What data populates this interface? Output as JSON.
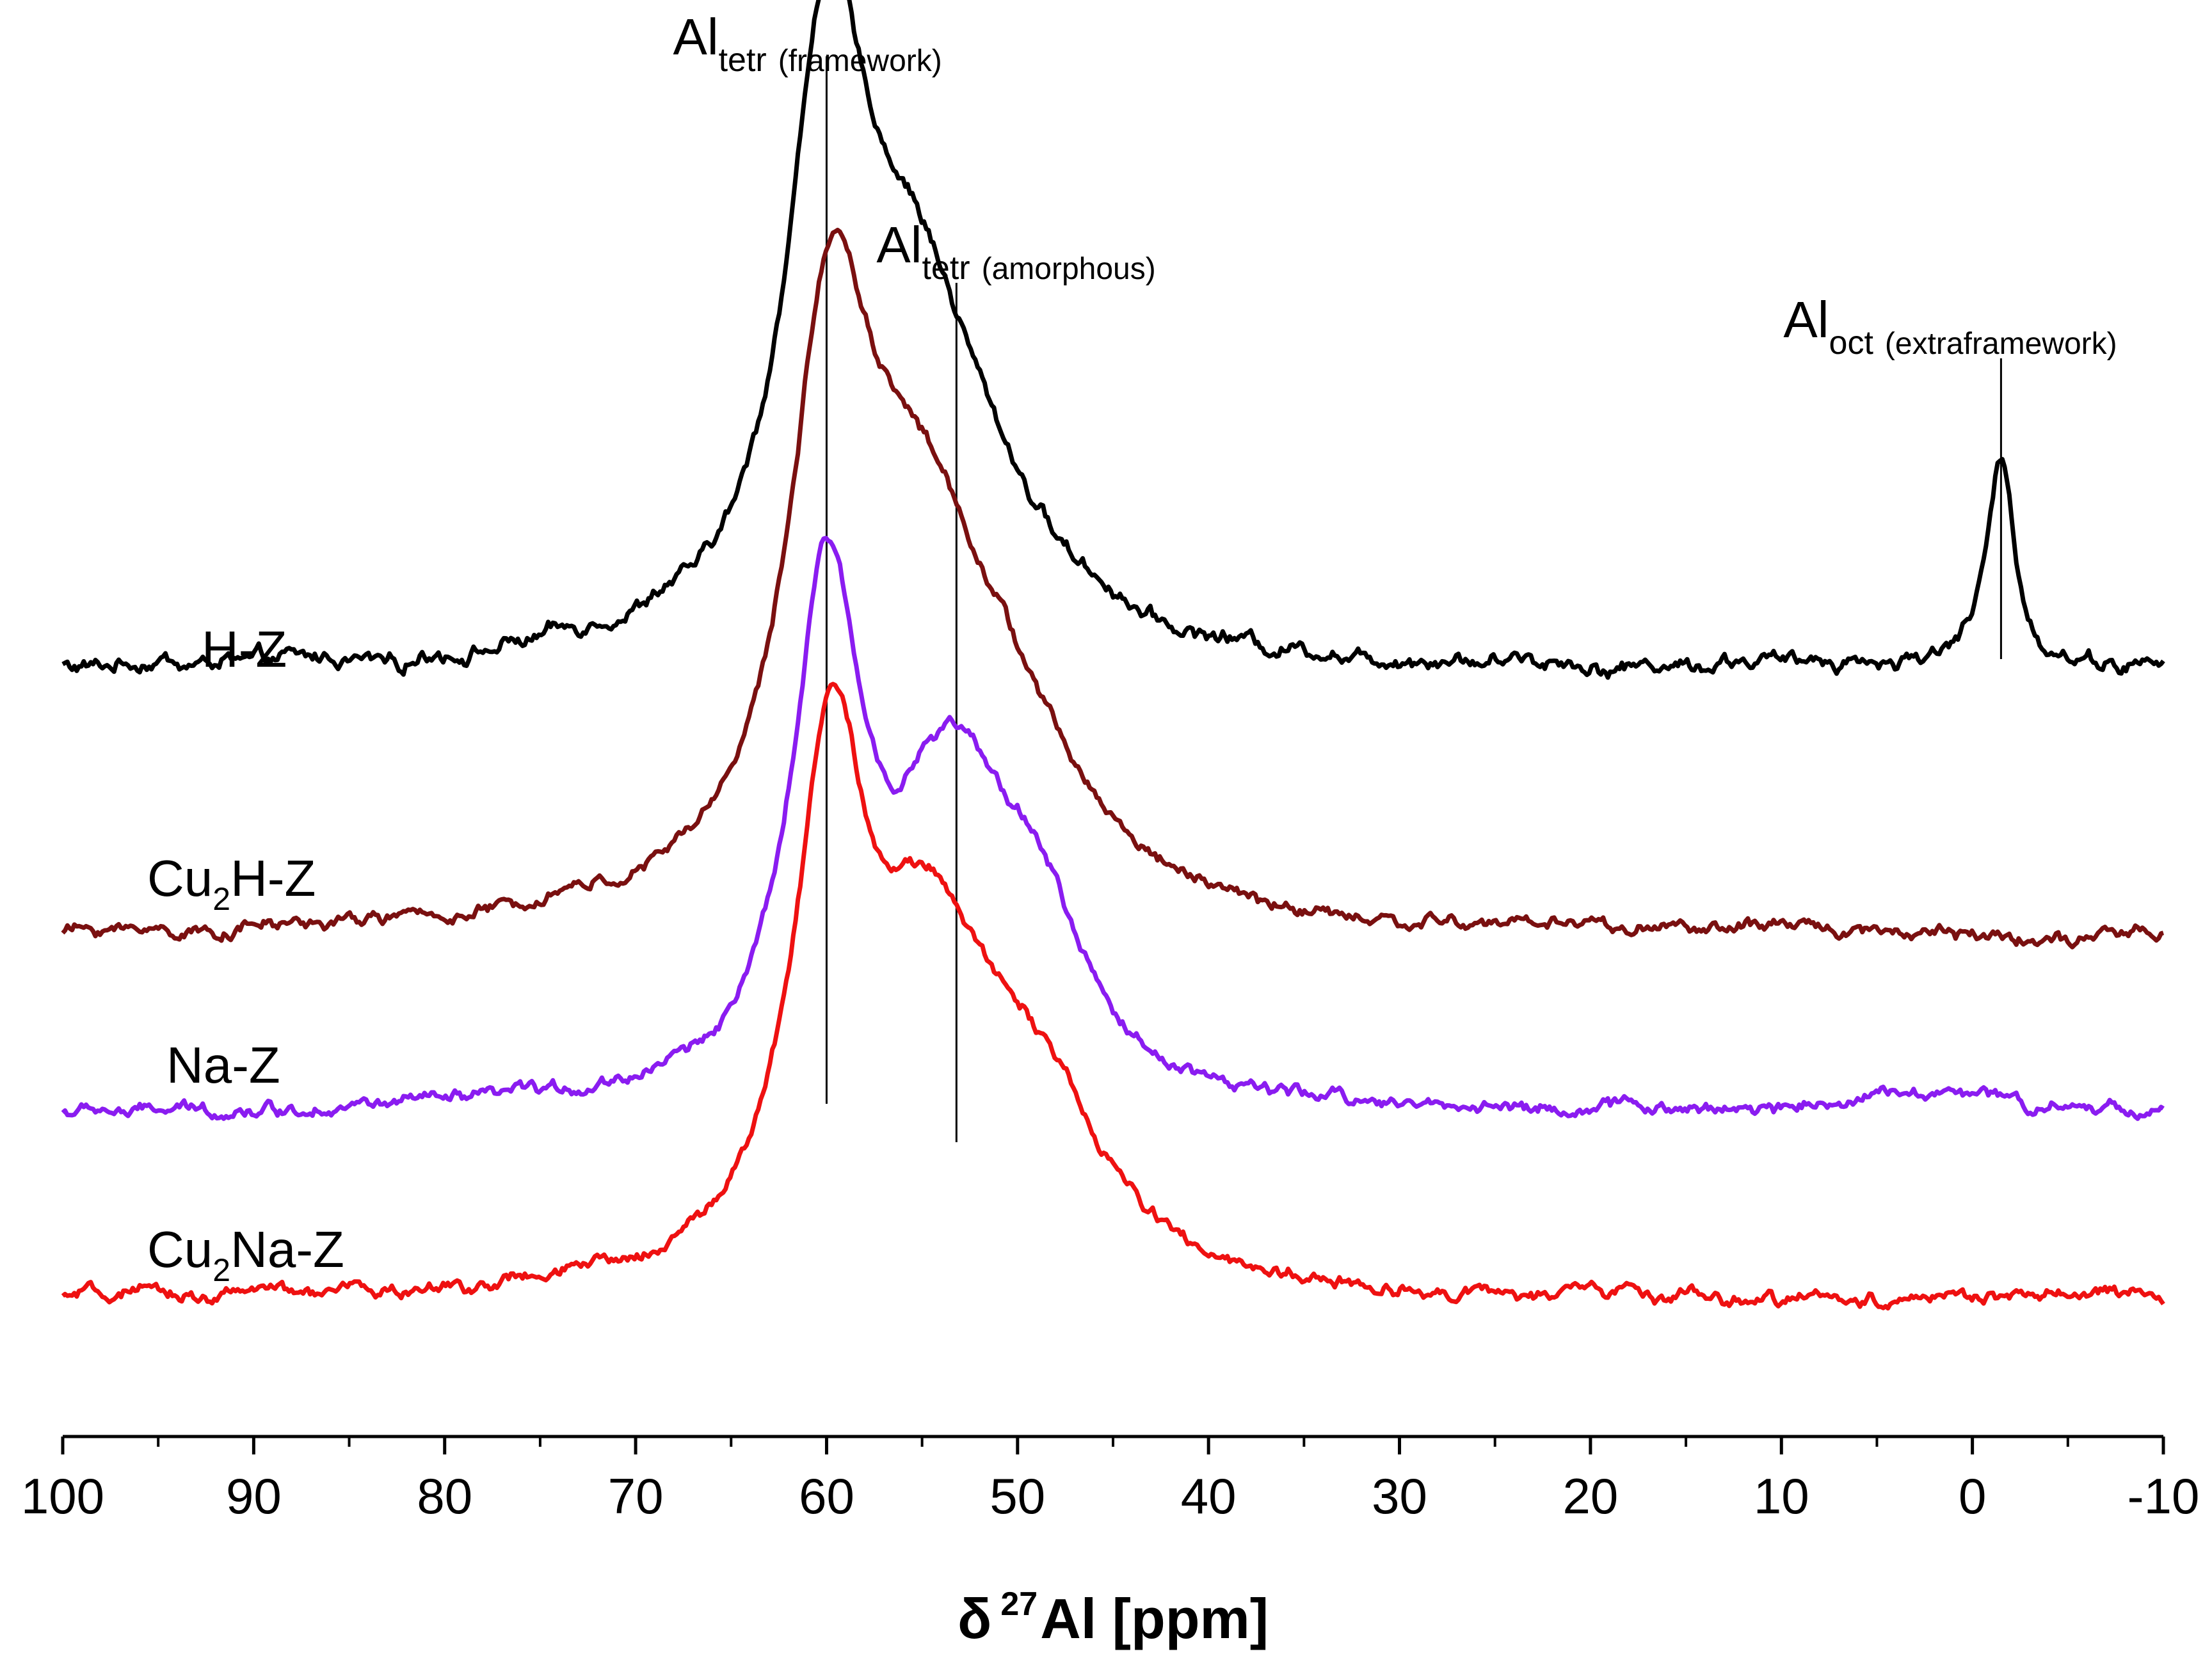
{
  "chart_data": {
    "type": "line",
    "title": "",
    "xlabel": "δ 27Al [ppm]",
    "xlabel_parts": {
      "symbol": "δ",
      "isotope": "27",
      "rest": "Al [ppm]"
    },
    "ylabel": "",
    "xlim": [
      100,
      -10
    ],
    "x_reversed": true,
    "x_ticks": [
      100,
      90,
      80,
      70,
      60,
      50,
      40,
      30,
      20,
      10,
      0,
      -10
    ],
    "x_tick_labels": [
      "100",
      "90",
      "80",
      "70",
      "60",
      "50",
      "40",
      "30",
      "20",
      "10",
      "0",
      "-10"
    ],
    "y_axis_visible": false,
    "grid": false,
    "series": [
      {
        "name": "H-Z",
        "label_parts": [
          "H-Z"
        ],
        "color": "#000000",
        "offset": 3,
        "baseline": 0.05,
        "noise": 0.03,
        "peaks": [
          {
            "center": 60.0,
            "height": 1.0,
            "width": 2.4
          },
          {
            "center": 56.0,
            "height": 0.45,
            "width": 4.0
          },
          {
            "center": 53.0,
            "height": 0.25,
            "width": 5.0
          },
          {
            "center": -1.5,
            "height": 0.38,
            "width": 0.9
          }
        ]
      },
      {
        "name": "Cu2H-Z",
        "label_parts": [
          "Cu",
          "2",
          "H-Z"
        ],
        "color": "#7a1010",
        "offset": 2,
        "baseline": 0.0,
        "noise": 0.025,
        "peaks": [
          {
            "center": 59.8,
            "height": 0.95,
            "width": 2.6
          },
          {
            "center": 55.5,
            "height": 0.55,
            "width": 4.2
          },
          {
            "center": 51.0,
            "height": 0.28,
            "width": 5.0
          }
        ]
      },
      {
        "name": "Na-Z",
        "label_parts": [
          "Na-Z"
        ],
        "color": "#8a1cf0",
        "offset": 1,
        "baseline": 0.03,
        "noise": 0.025,
        "peaks": [
          {
            "center": 60.0,
            "height": 0.9,
            "width": 2.2
          },
          {
            "center": 53.5,
            "height": 0.55,
            "width": 3.8
          },
          {
            "center": 49.0,
            "height": 0.25,
            "width": 3.0
          },
          {
            "center": 2.0,
            "height": 0.05,
            "width": 6.0
          }
        ]
      },
      {
        "name": "Cu2Na-Z",
        "label_parts": [
          "Cu",
          "2",
          "Na-Z"
        ],
        "color": "#ee1111",
        "offset": 0,
        "baseline": 0.03,
        "noise": 0.025,
        "peaks": [
          {
            "center": 59.8,
            "height": 0.9,
            "width": 2.3
          },
          {
            "center": 54.5,
            "height": 0.55,
            "width": 4.0
          },
          {
            "center": 49.0,
            "height": 0.28,
            "width": 4.0
          }
        ]
      }
    ],
    "annotations": [
      {
        "name": "Al-tetr-framework",
        "x": 60,
        "main": "Al",
        "sub": "tetr",
        "desc": "(framework)"
      },
      {
        "name": "Al-tetr-amorphous",
        "x": 53.2,
        "main": "Al",
        "sub": "tetr",
        "desc": "(amorphous)"
      },
      {
        "name": "Al-oct-extraframework",
        "x": -1.5,
        "main": "Al",
        "sub": "oct",
        "desc": "(extraframework)"
      }
    ]
  }
}
